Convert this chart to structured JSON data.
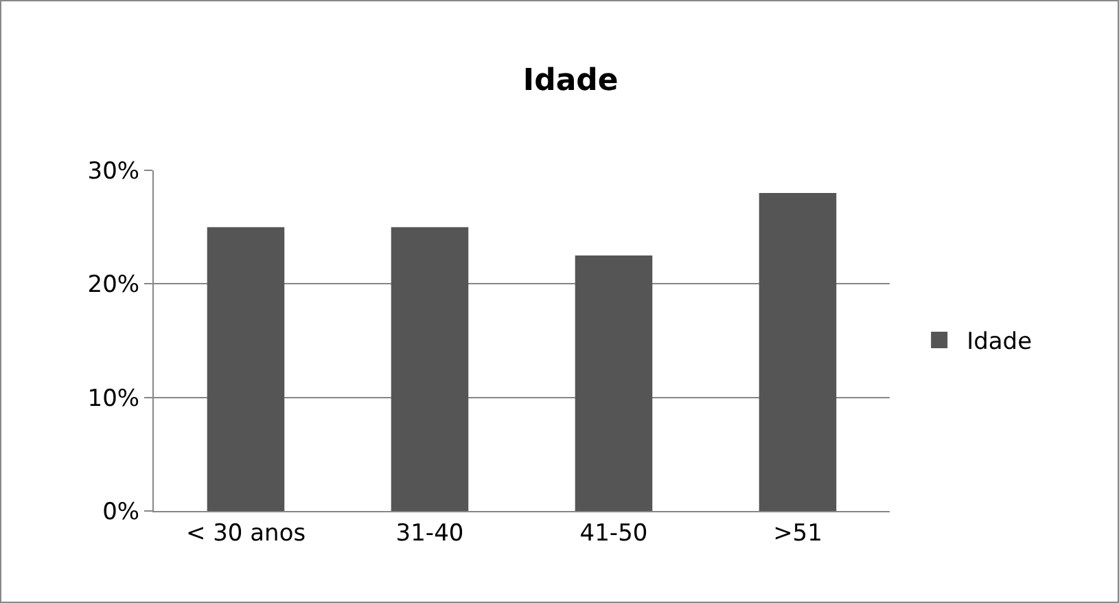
{
  "chart_data": {
    "type": "bar",
    "title": "Idade",
    "categories": [
      "< 30 anos",
      "31-40",
      "41-50",
      ">51"
    ],
    "series": [
      {
        "name": "Idade",
        "color": "#555555",
        "values": [
          25,
          25,
          22.5,
          28
        ]
      }
    ],
    "ylim": [
      0,
      30
    ],
    "yticks": [
      {
        "value": 0,
        "label": "0%"
      },
      {
        "value": 10,
        "label": "10%"
      },
      {
        "value": 20,
        "label": "20%"
      },
      {
        "value": 30,
        "label": "30%"
      }
    ],
    "grid": "y",
    "legend": "right"
  }
}
